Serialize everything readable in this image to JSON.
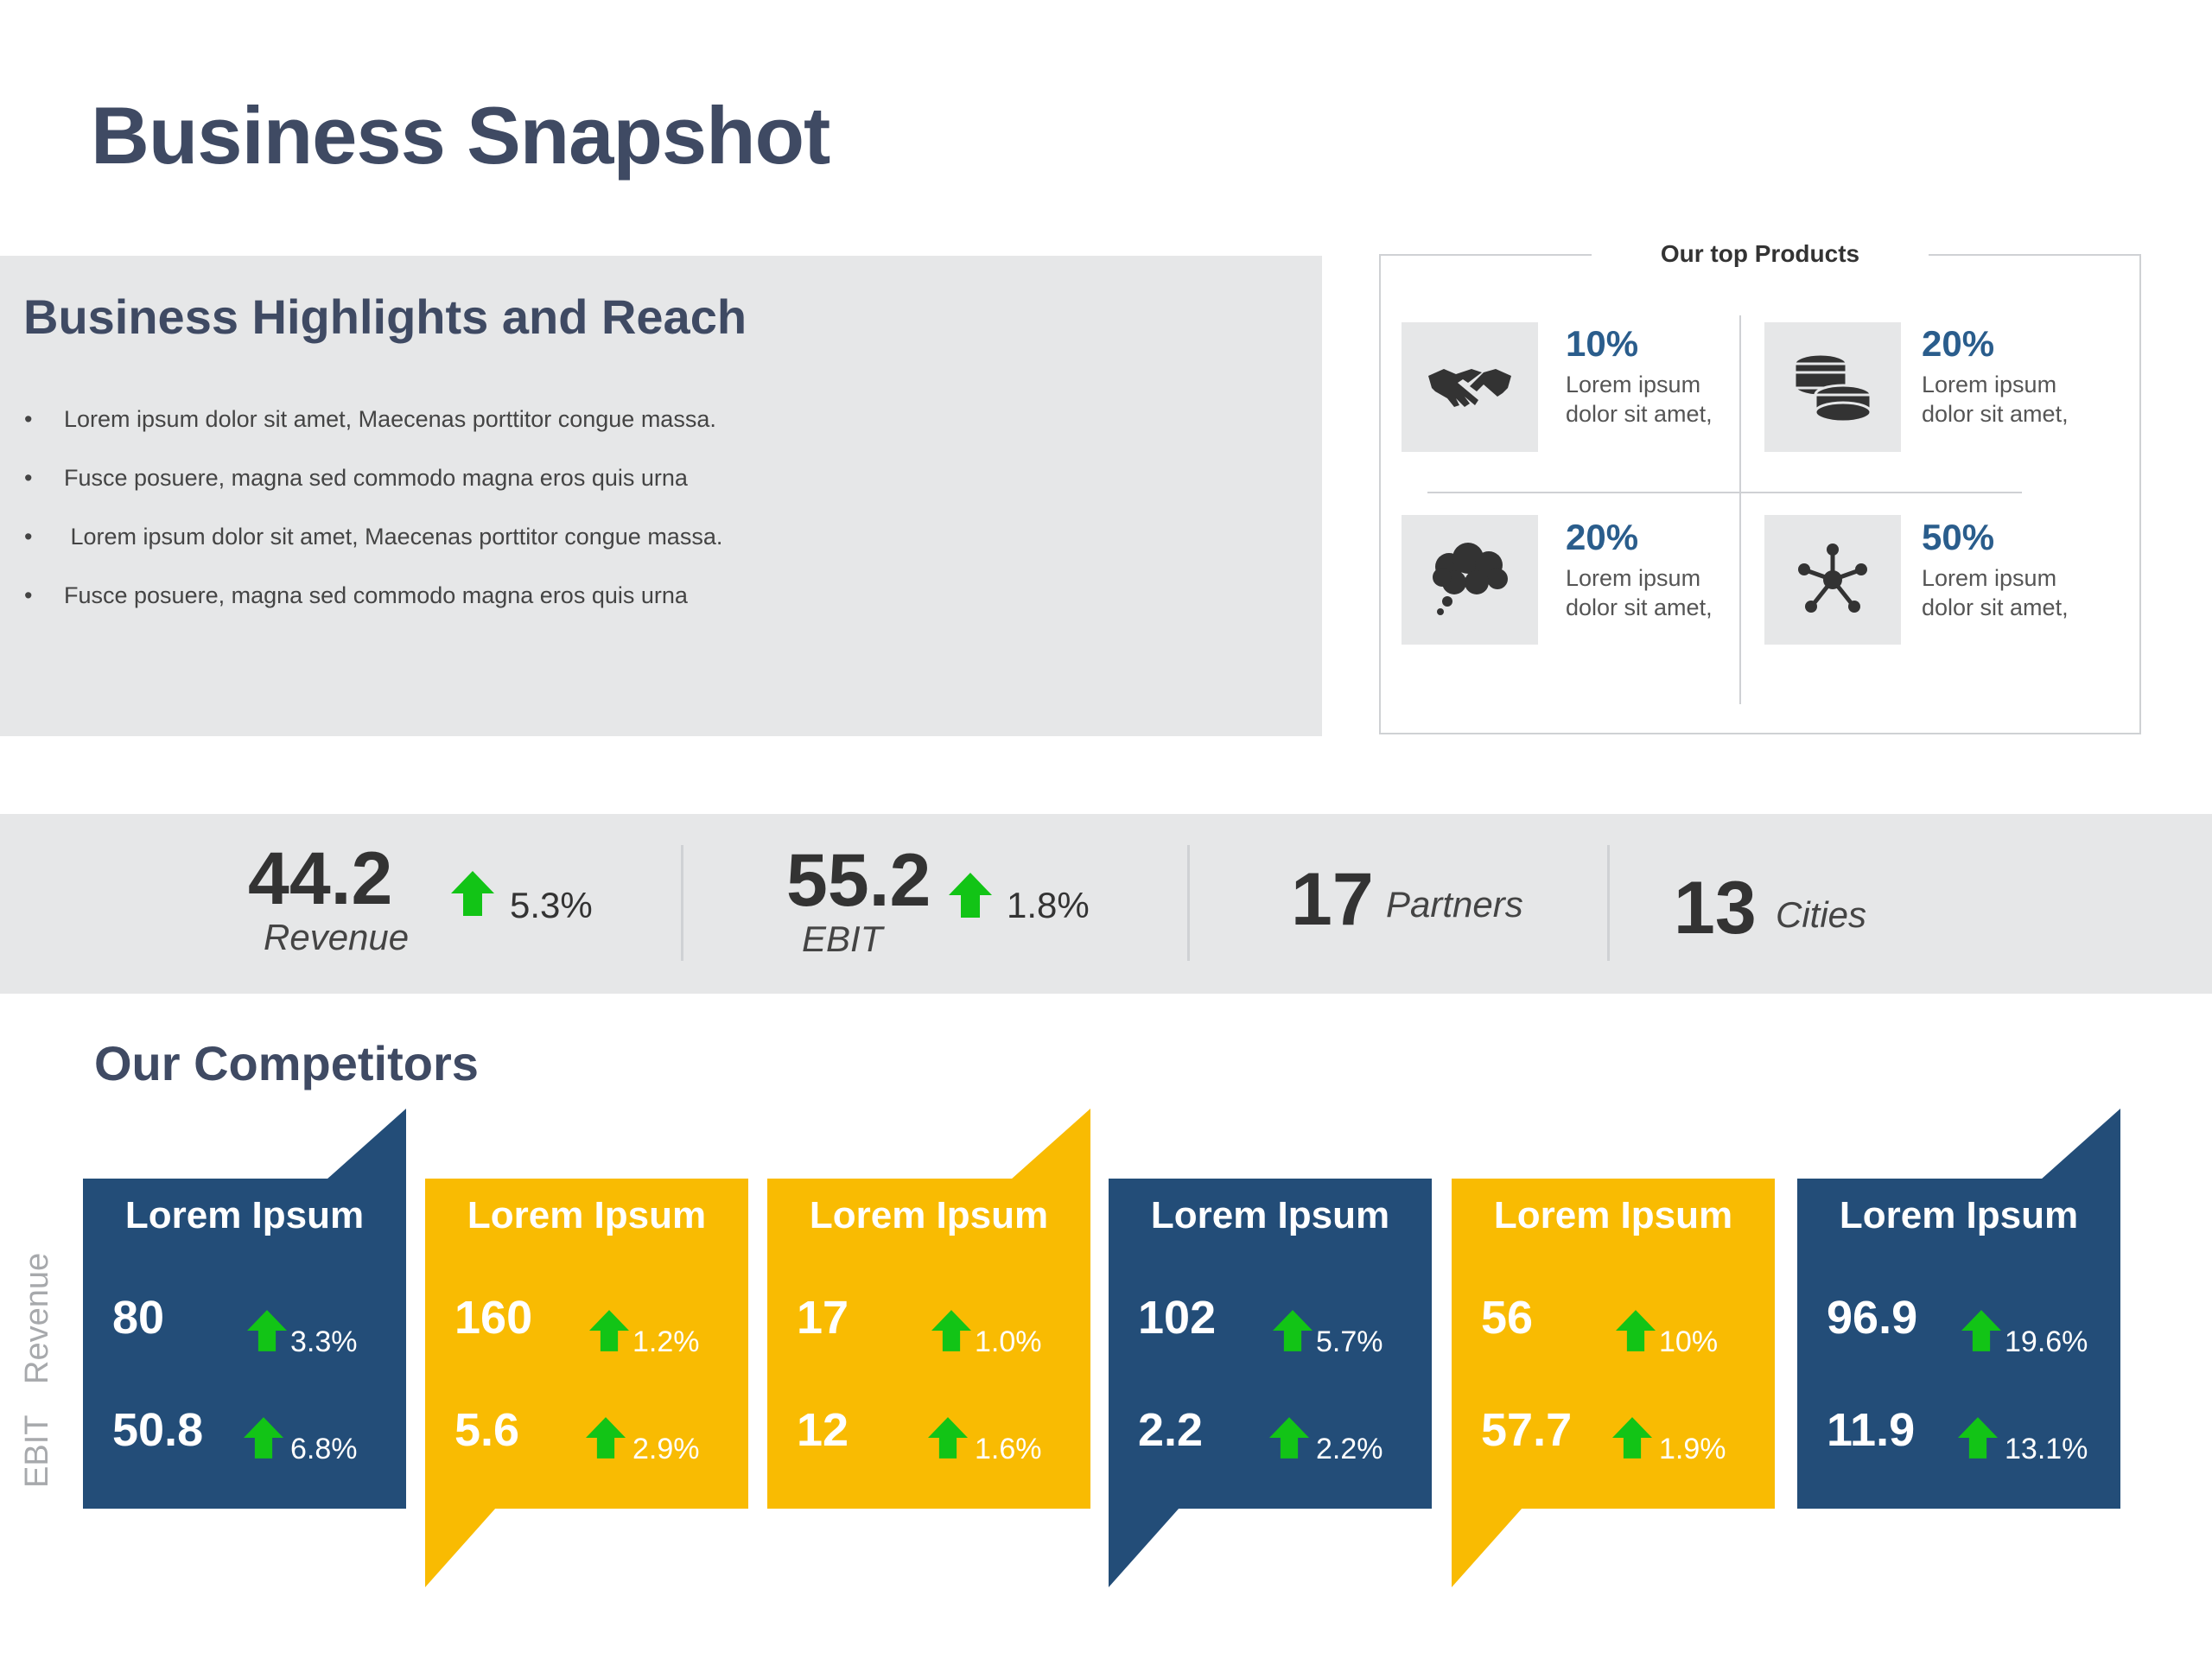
{
  "page": {
    "title": "Business Snapshot"
  },
  "highlights": {
    "title": "Business Highlights and Reach",
    "bullet_glyph": "•",
    "items": [
      "Lorem ipsum dolor sit amet, Maecenas porttitor congue massa.",
      "Fusce posuere, magna sed commodo magna eros quis urna",
      " Lorem ipsum dolor sit amet, Maecenas porttitor congue massa.",
      "Fusce posuere, magna sed commodo magna eros quis urna"
    ]
  },
  "products": {
    "title": "Our top Products",
    "items": [
      {
        "icon": "handshake-icon",
        "pct": "10%",
        "desc": "Lorem ipsum dolor sit amet,"
      },
      {
        "icon": "coins-icon",
        "pct": "20%",
        "desc": "Lorem ipsum dolor sit amet,"
      },
      {
        "icon": "thought-cloud-icon",
        "pct": "20%",
        "desc": "Lorem ipsum dolor sit amet,"
      },
      {
        "icon": "network-icon",
        "pct": "50%",
        "desc": "Lorem ipsum dolor sit amet,"
      }
    ]
  },
  "kpis": {
    "revenue": {
      "value": "44.2",
      "label": "Revenue",
      "change": "5.3%"
    },
    "ebit": {
      "value": "55.2",
      "label": "EBIT",
      "change": "1.8%"
    },
    "partners": {
      "value": "17",
      "label": "Partners"
    },
    "cities": {
      "value": "13",
      "label": "Cities"
    }
  },
  "competitors": {
    "title": "Our Competitors",
    "axis": {
      "revenue": "Revenue",
      "ebit": "EBIT"
    },
    "colors": {
      "blue": "#234d78",
      "gold": "#f9bb02",
      "arrow": "#12c416"
    },
    "cards": [
      {
        "name": "Lorem Ipsum",
        "color": "blue",
        "revenue": "80",
        "revenue_change": "3.3%",
        "ebit": "50.8",
        "ebit_change": "6.8%"
      },
      {
        "name": "Lorem Ipsum",
        "color": "gold",
        "revenue": "160",
        "revenue_change": "1.2%",
        "ebit": "5.6",
        "ebit_change": "2.9%"
      },
      {
        "name": "Lorem Ipsum",
        "color": "gold",
        "revenue": "17",
        "revenue_change": "1.0%",
        "ebit": "12",
        "ebit_change": "1.6%"
      },
      {
        "name": "Lorem Ipsum",
        "color": "blue",
        "revenue": "102",
        "revenue_change": "5.7%",
        "ebit": "2.2",
        "ebit_change": "2.2%"
      },
      {
        "name": "Lorem Ipsum",
        "color": "gold",
        "revenue": "56",
        "revenue_change": "10%",
        "ebit": "57.7",
        "ebit_change": "1.9%"
      },
      {
        "name": "Lorem Ipsum",
        "color": "blue",
        "revenue": "96.9",
        "revenue_change": "19.6%",
        "ebit": "11.9",
        "ebit_change": "13.1%"
      }
    ]
  }
}
